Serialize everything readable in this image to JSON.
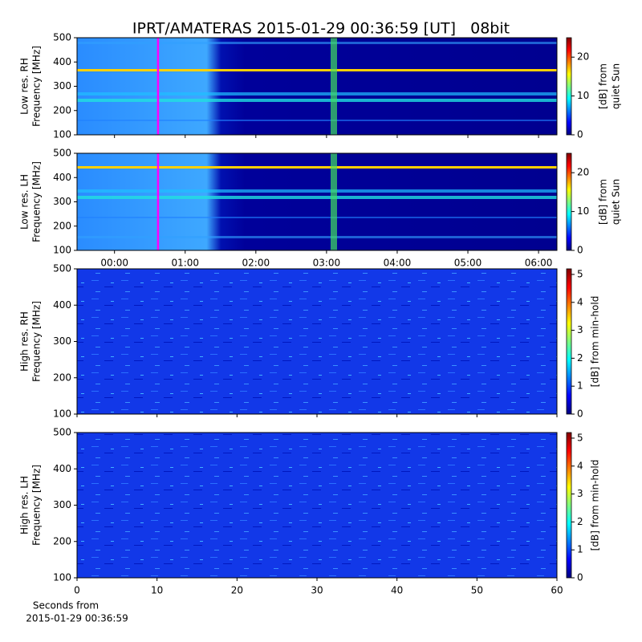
{
  "figure": {
    "title": "IPRT/AMATERAS 2015-01-29 00:36:59 [UT]   08bit",
    "xlabel": [
      "Seconds from",
      "2015-01-29 00:36:59"
    ]
  },
  "chart_data": [
    {
      "type": "heatmap",
      "ylabel": [
        "Low res. RH",
        "Frequency [MHz]"
      ],
      "ylim": [
        100,
        500
      ],
      "yticks": [
        100,
        200,
        300,
        400,
        500
      ],
      "xlim": [
        -0.53,
        6.26
      ],
      "xticks": [
        {
          "value": 0,
          "label": "00:00"
        },
        {
          "value": 1,
          "label": "01:00"
        },
        {
          "value": 2,
          "label": "02:00"
        },
        {
          "value": 3,
          "label": "03:00"
        },
        {
          "value": 4,
          "label": "04:00"
        },
        {
          "value": 5,
          "label": "05:00"
        },
        {
          "value": 6,
          "label": "06:00"
        }
      ],
      "xticklabels": false,
      "marker_x": 0.616,
      "marker_color": "#ff00ff",
      "clim": [
        0,
        25
      ],
      "cticks": [
        0,
        10,
        20
      ],
      "clabel": [
        "[dB] from",
        "quiet Sun"
      ],
      "style": "low"
    },
    {
      "type": "heatmap",
      "ylabel": [
        "Low res. LH",
        "Frequency [MHz]"
      ],
      "ylim": [
        100,
        500
      ],
      "yticks": [
        100,
        200,
        300,
        400,
        500
      ],
      "xlim": [
        -0.53,
        6.26
      ],
      "xticks": [
        {
          "value": 0,
          "label": "00:00"
        },
        {
          "value": 1,
          "label": "01:00"
        },
        {
          "value": 2,
          "label": "02:00"
        },
        {
          "value": 3,
          "label": "03:00"
        },
        {
          "value": 4,
          "label": "04:00"
        },
        {
          "value": 5,
          "label": "05:00"
        },
        {
          "value": 6,
          "label": "06:00"
        }
      ],
      "xticklabels": true,
      "marker_x": 0.616,
      "marker_color": "#ff00ff",
      "clim": [
        0,
        25
      ],
      "cticks": [
        0,
        10,
        20
      ],
      "clabel": [
        "[dB] from",
        "quiet Sun"
      ],
      "style": "low"
    },
    {
      "type": "heatmap",
      "ylabel": [
        "High res. RH",
        "Frequency [MHz]"
      ],
      "ylim": [
        100,
        500
      ],
      "yticks": [
        100,
        200,
        300,
        400,
        500
      ],
      "xlim": [
        0,
        60
      ],
      "xticks": [
        0,
        10,
        20,
        30,
        40,
        50,
        60
      ],
      "xticklabels": false,
      "clim": [
        0,
        5.2
      ],
      "cticks": [
        0,
        1,
        2,
        3,
        4,
        5
      ],
      "clabel": [
        "[dB] from min-hold"
      ],
      "style": "high"
    },
    {
      "type": "heatmap",
      "ylabel": [
        "High res. LH",
        "Frequency [MHz]"
      ],
      "ylim": [
        100,
        500
      ],
      "yticks": [
        100,
        200,
        300,
        400,
        500
      ],
      "xlim": [
        0,
        60
      ],
      "xticks": [
        0,
        10,
        20,
        30,
        40,
        50,
        60
      ],
      "xticklabels": true,
      "clim": [
        0,
        5.2
      ],
      "cticks": [
        0,
        1,
        2,
        3,
        4,
        5
      ],
      "clabel": [
        "[dB] from min-hold"
      ],
      "style": "high"
    }
  ]
}
